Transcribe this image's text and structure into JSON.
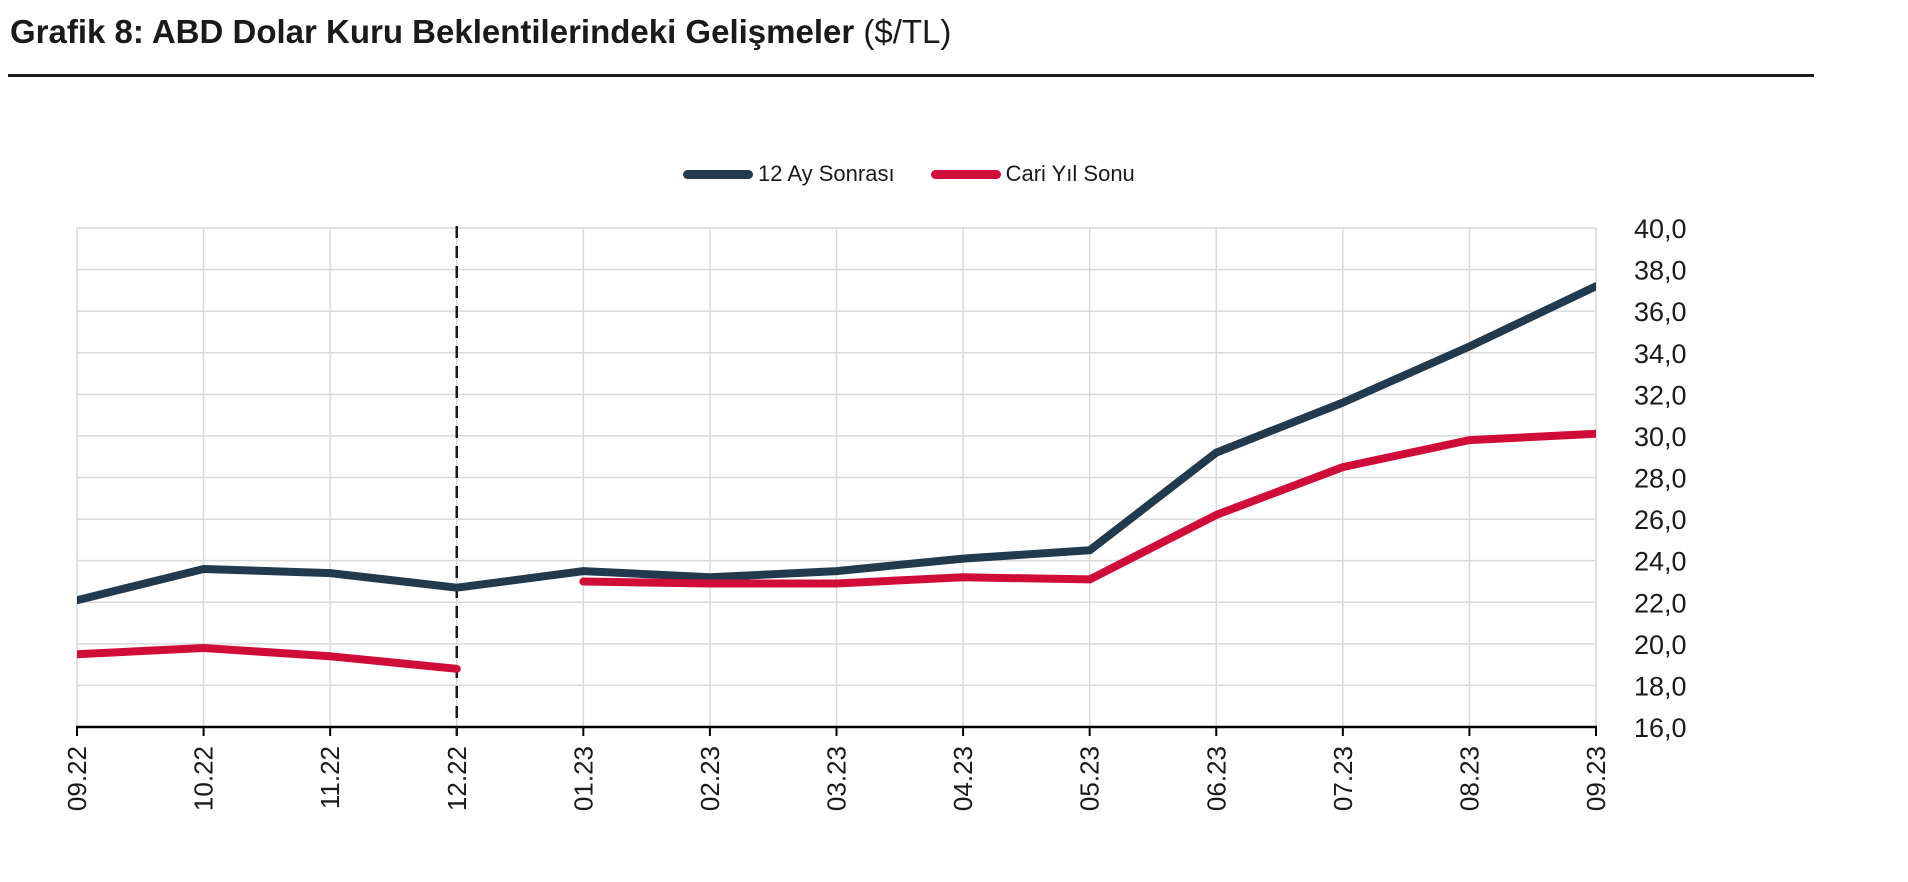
{
  "header": {
    "title_bold": "Grafik 8: ABD Dolar Kuru Beklentilerindeki Gelişmeler",
    "title_unit": " ($/TL)"
  },
  "colors": {
    "navy": "#213a4e",
    "red": "#d00d39",
    "gridline": "#d9d9d9",
    "axis": "#000000",
    "text": "#1a1a1a",
    "background": "#ffffff"
  },
  "chart_data": {
    "type": "line",
    "title": "Grafik 8: ABD Dolar Kuru Beklentilerindeki Gelişmeler ($/TL)",
    "xlabel": "",
    "ylabel": "",
    "categories": [
      "09.22",
      "10.22",
      "11.22",
      "12.22",
      "01.23",
      "02.23",
      "03.23",
      "04.23",
      "05.23",
      "06.23",
      "07.23",
      "08.23",
      "09.23"
    ],
    "series": [
      {
        "name": "12 Ay Sonrası",
        "color": "#213a4e",
        "values": [
          22.1,
          23.6,
          23.4,
          22.7,
          23.5,
          23.2,
          23.5,
          24.1,
          24.5,
          29.2,
          31.6,
          34.3,
          37.2
        ]
      },
      {
        "name": "Cari Yıl Sonu",
        "color": "#d00d39",
        "values": [
          19.5,
          19.8,
          19.4,
          18.8,
          23.0,
          22.9,
          22.9,
          23.2,
          23.1,
          26.2,
          28.5,
          29.8,
          30.1
        ],
        "gap_after_index": 3
      }
    ],
    "ylim": [
      16,
      40
    ],
    "ytick_step": 2,
    "ytick_labels": [
      "40,0",
      "38,0",
      "36,0",
      "34,0",
      "32,0",
      "30,0",
      "28,0",
      "26,0",
      "24,0",
      "22,0",
      "20,0",
      "18,0",
      "16,0"
    ],
    "yaxis_side": "right",
    "grid": true,
    "legend_position": "top-center",
    "annotation": {
      "type": "vertical-dashed-line",
      "at_category": "12.22",
      "color": "#1a1a1a"
    }
  }
}
